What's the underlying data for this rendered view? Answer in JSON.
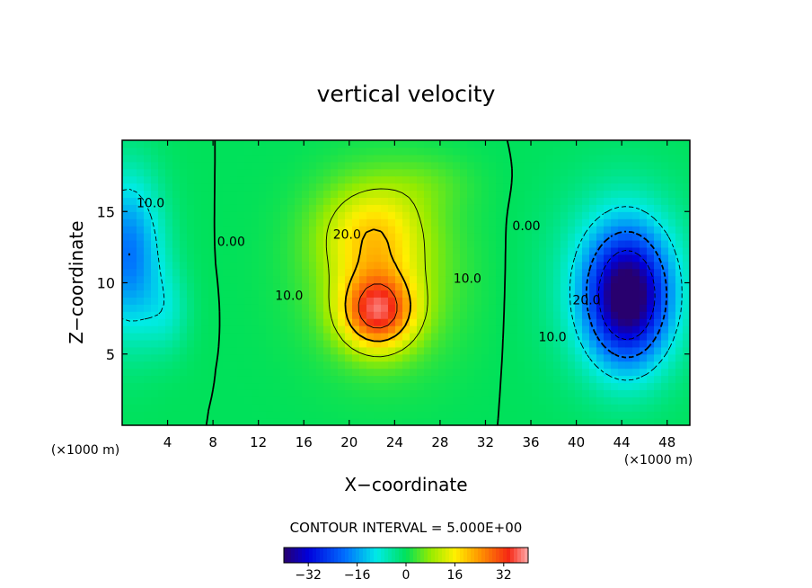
{
  "chart_data": {
    "type": "heatmap",
    "title": "vertical velocity",
    "xlabel": "X−coordinate",
    "ylabel": "Z−coordinate",
    "x_unit_left": "(×1000 m)",
    "x_unit_right": "(×1000 m)",
    "xlim": [
      0,
      50
    ],
    "ylim": [
      0,
      20
    ],
    "x_ticks": [
      4,
      8,
      12,
      16,
      20,
      24,
      28,
      32,
      36,
      40,
      44,
      48
    ],
    "y_ticks": [
      5,
      10,
      15
    ],
    "contour_interval_text": "CONTOUR INTERVAL = 5.000E+00",
    "colorbar": {
      "min": -40,
      "max": 40,
      "ticks": [
        -32,
        -16,
        0,
        16,
        32
      ]
    },
    "contour_labels": [
      {
        "text": "10.0",
        "x": 2.5,
        "y": 15.3
      },
      {
        "text": "0.00",
        "x": 9.6,
        "y": 12.6
      },
      {
        "text": "20.0",
        "x": 19.8,
        "y": 13.1
      },
      {
        "text": "10.0",
        "x": 14.7,
        "y": 8.8
      },
      {
        "text": "10.0",
        "x": 30.4,
        "y": 10.0
      },
      {
        "text": "0.00",
        "x": 35.6,
        "y": 13.7
      },
      {
        "text": "20.0",
        "x": 40.9,
        "y": 8.5
      },
      {
        "text": "10.0",
        "x": 37.9,
        "y": 5.9
      }
    ],
    "field_features": [
      {
        "name": "updraft core",
        "x": 22.5,
        "y": 8.0,
        "sx": 3.2,
        "sy": 2.6,
        "value": 30
      },
      {
        "name": "updraft upper",
        "x": 22.0,
        "y": 13.5,
        "sx": 4.5,
        "sy": 3.5,
        "value": 14
      },
      {
        "name": "updraft broad",
        "x": 23.0,
        "y": 10.5,
        "sx": 6.5,
        "sy": 6.0,
        "value": 8
      },
      {
        "name": "downdraft core",
        "x": 44.5,
        "y": 9.0,
        "sx": 3.5,
        "sy": 4.5,
        "value": -36
      },
      {
        "name": "downdraft broad",
        "x": 44.0,
        "y": 10.0,
        "sx": 6.0,
        "sy": 6.5,
        "value": -10
      },
      {
        "name": "left downdraft",
        "x": 0.5,
        "y": 12.0,
        "sx": 3.0,
        "sy": 5.5,
        "value": -20
      },
      {
        "name": "left secondary",
        "x": 4.0,
        "y": 8.0,
        "sx": 2.0,
        "sy": 3.0,
        "value": -6
      },
      {
        "name": "upper ridge",
        "x": 27.0,
        "y": 17.0,
        "sx": 4.0,
        "sy": 2.0,
        "value": 3
      }
    ],
    "grid": false,
    "legend": "bottom"
  }
}
